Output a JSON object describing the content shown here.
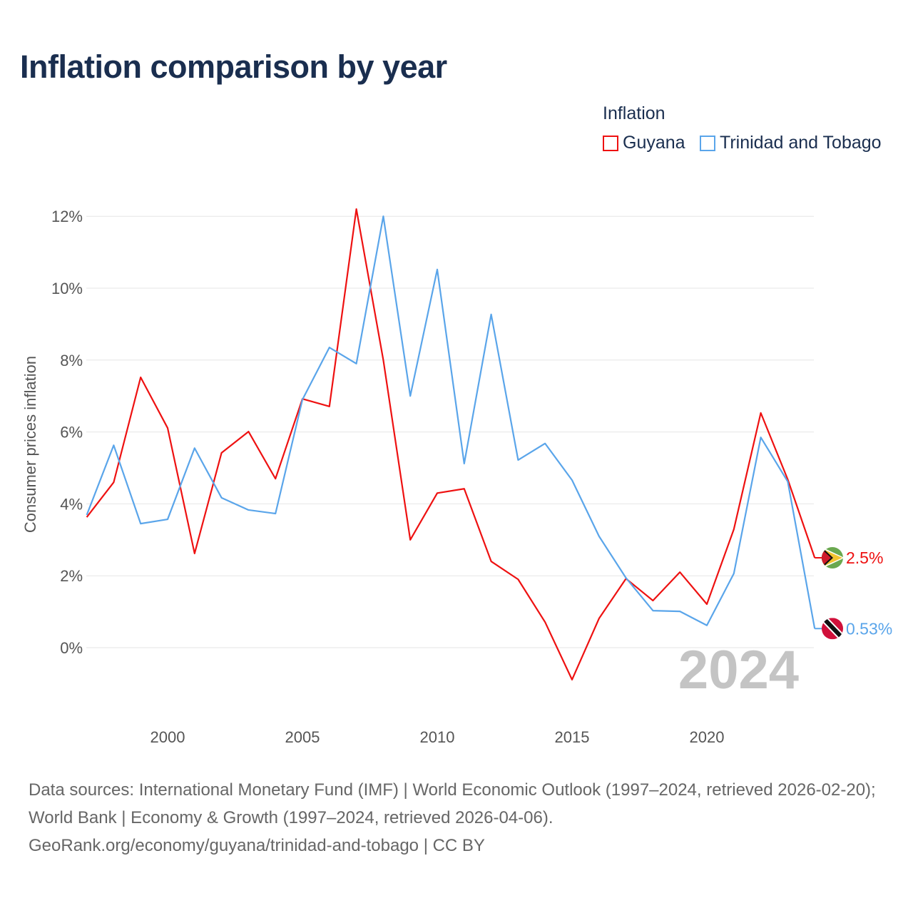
{
  "title": "Inflation comparison by year",
  "legend": {
    "title": "Inflation"
  },
  "source_lines": [
    "Data sources: International Monetary Fund (IMF) | World Economic Outlook (1997–2024, retrieved 2026-02-20); World Bank | Economy & Growth (1997–2024, retrieved 2026-04-06).",
    "GeoRank.org/economy/guyana/trinidad-and-tobago | CC BY"
  ],
  "chart_data": {
    "type": "line",
    "title": "Inflation comparison by year",
    "xlabel": "",
    "ylabel": "Consumer prices inflation",
    "x": [
      1997,
      1998,
      1999,
      2000,
      2001,
      2002,
      2003,
      2004,
      2005,
      2006,
      2007,
      2008,
      2009,
      2010,
      2011,
      2012,
      2013,
      2014,
      2015,
      2016,
      2017,
      2018,
      2019,
      2020,
      2021,
      2022,
      2023,
      2024
    ],
    "xlim": [
      1997,
      2024
    ],
    "ylim": [
      -2,
      12.5
    ],
    "xticks": [
      "2000",
      "2005",
      "2010",
      "2015",
      "2020"
    ],
    "yticks": [
      "0%",
      "2%",
      "4%",
      "6%",
      "8%",
      "10%",
      "12%"
    ],
    "watermark_year": "2024",
    "grid": true,
    "legend_placement": "top-right",
    "series": [
      {
        "name": "Guyana",
        "color": "#ee1111",
        "end_label": "2.5%",
        "flag": "guyana-flag",
        "values": [
          3.63,
          4.6,
          7.52,
          6.11,
          2.62,
          5.42,
          6.01,
          4.7,
          6.92,
          6.71,
          12.2,
          8.0,
          3.0,
          4.3,
          4.42,
          2.4,
          1.9,
          0.71,
          -0.89,
          0.81,
          1.92,
          1.31,
          2.1,
          1.21,
          3.29,
          6.53,
          4.68,
          2.5
        ]
      },
      {
        "name": "Trinidad and Tobago",
        "color": "#5aa5ea",
        "end_label": "0.53%",
        "flag": "trinidad-and-tobago-flag",
        "values": [
          3.69,
          5.63,
          3.45,
          3.57,
          5.55,
          4.17,
          3.83,
          3.73,
          6.9,
          8.35,
          7.9,
          12.0,
          7.0,
          10.52,
          5.12,
          9.27,
          5.22,
          5.68,
          4.66,
          3.1,
          1.94,
          1.03,
          1.01,
          0.62,
          2.06,
          5.85,
          4.62,
          0.53
        ]
      }
    ]
  }
}
